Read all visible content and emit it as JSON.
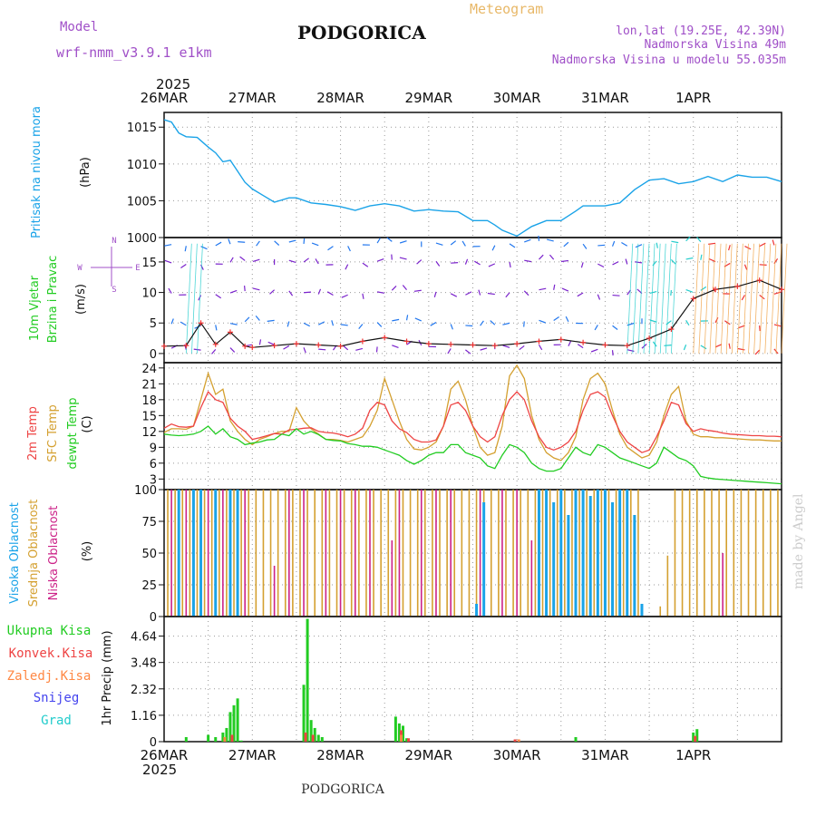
{
  "header": {
    "model_label": "Model",
    "model_name": "wrf-nmm_v3.9.1 e1km",
    "city": "PODGORICA",
    "title": "Meteogram",
    "lonlat": "lon,lat (19.25E, 42.39N)",
    "elevation": "Nadmorska Visina 49m",
    "model_elevation": "Nadmorska Visina u modelu 55.035m",
    "footer_city": "PODGORICA",
    "credit": "made by Angel"
  },
  "time_axis": {
    "year": "2025",
    "ticks": [
      "26MAR",
      "27MAR",
      "28MAR",
      "29MAR",
      "30MAR",
      "31MAR",
      "1APR"
    ]
  },
  "colors": {
    "pressure": "#1aa3e8",
    "wind_label": "#22cc22",
    "wind_purple": "#7a22cc",
    "wind_blue": "#2277ee",
    "wind_cyan": "#22cccc",
    "wind_red": "#ee3333",
    "temp2m": "#ee4444",
    "sfc": "#d4a030",
    "dewpt": "#22cc22",
    "cloud_high": "#1aa3e8",
    "cloud_mid": "#d4a030",
    "cloud_low": "#cc2288",
    "rain": "#22cc22",
    "conv": "#ee4444",
    "frz": "#ff8844",
    "snow": "#4444ee",
    "grad": "#22cccc"
  },
  "panels": {
    "pressure": {
      "labels": [
        "Pritisak na nivou mora",
        "(hPa)"
      ]
    },
    "wind": {
      "labels": [
        "10m Vjetar",
        "Brzina i Pravac",
        "(m/s)"
      ],
      "compass": [
        "N",
        "W",
        "E",
        "S"
      ]
    },
    "temp": {
      "labels": [
        "2m Temp",
        "SFC Temp",
        "dewpt Temp",
        "(C)"
      ]
    },
    "cloud": {
      "labels": [
        "Visoka Oblacnost",
        "Srednja Oblacnost",
        "Niska Oblacnost",
        "(%)"
      ]
    },
    "precip": {
      "labels": [
        "Ukupna Kisa",
        "Konvek.Kisa",
        "Zaledj.Kisa",
        "Snijeg",
        "Grad"
      ],
      "unit": "1hr Precip (mm)"
    }
  },
  "chart_data": [
    {
      "type": "line",
      "name": "pressure",
      "ylabel": "(hPa)",
      "ylim": [
        1000,
        1017
      ],
      "yticks": [
        1000,
        1005,
        1010,
        1015
      ],
      "x_hours": [
        0,
        2,
        4,
        6,
        9,
        12,
        14,
        16,
        18,
        20,
        22,
        24,
        27,
        30,
        34,
        36,
        40,
        44,
        48,
        52,
        56,
        60,
        64,
        68,
        72,
        76,
        80,
        84,
        88,
        90,
        92,
        96,
        100,
        104,
        108,
        112,
        114,
        116,
        118,
        120,
        124,
        128,
        132,
        136,
        140,
        144,
        148,
        152,
        156,
        160,
        164,
        168
      ],
      "values": [
        1016,
        1015.7,
        1014.2,
        1013.7,
        1013.6,
        1012.3,
        1011.5,
        1010.3,
        1010.5,
        1009,
        1007.5,
        1006.6,
        1005.7,
        1004.8,
        1005.4,
        1005.4,
        1004.7,
        1004.5,
        1004.2,
        1003.7,
        1004.3,
        1004.6,
        1004.3,
        1003.6,
        1003.8,
        1003.6,
        1003.5,
        1002.3,
        1002.3,
        1001.7,
        1001.0,
        1000.2,
        1001.5,
        1002.3,
        1002.3,
        1003.6,
        1004.3,
        1004.3,
        1004.3,
        1004.3,
        1004.7,
        1006.5,
        1007.8,
        1008.0,
        1007.3,
        1007.6,
        1008.3,
        1007.6,
        1008.5,
        1008.2,
        1008.2,
        1007.6
      ],
      "grid": true
    },
    {
      "type": "line",
      "name": "wind",
      "ylabel": "(m/s)",
      "ylim": [
        -1.5,
        19
      ],
      "yticks": [
        0,
        5,
        10,
        15
      ],
      "series": [
        {
          "x_hours": [
            0,
            6,
            10,
            14,
            18,
            22,
            24,
            30,
            36,
            42,
            48,
            54,
            60,
            66,
            72,
            78,
            84,
            90,
            96,
            102,
            108,
            114,
            120,
            126,
            132,
            138,
            144,
            150,
            156,
            162,
            168
          ],
          "values": [
            1.2,
            1.3,
            5.0,
            1.5,
            3.5,
            1.2,
            1.0,
            1.3,
            1.6,
            1.4,
            1.2,
            2.0,
            2.6,
            2.0,
            1.6,
            1.5,
            1.4,
            1.3,
            1.6,
            2.0,
            2.3,
            1.8,
            1.4,
            1.3,
            2.5,
            4.0,
            9.0,
            10.5,
            11.0,
            12.0,
            10.5
          ]
        }
      ],
      "grid": true
    },
    {
      "type": "line",
      "name": "temperature",
      "ylabel": "(C)",
      "ylim": [
        1,
        25
      ],
      "yticks": [
        3,
        6,
        9,
        12,
        15,
        18,
        21,
        24
      ],
      "x_hours": [
        0,
        2,
        4,
        6,
        8,
        10,
        12,
        14,
        16,
        18,
        20,
        22,
        24,
        26,
        28,
        30,
        32,
        34,
        36,
        38,
        40,
        42,
        44,
        46,
        48,
        50,
        52,
        54,
        56,
        58,
        60,
        62,
        64,
        66,
        68,
        70,
        72,
        74,
        76,
        78,
        80,
        82,
        84,
        86,
        88,
        90,
        92,
        94,
        96,
        98,
        100,
        102,
        104,
        106,
        108,
        110,
        112,
        114,
        116,
        118,
        120,
        122,
        124,
        126,
        128,
        130,
        132,
        134,
        136,
        138,
        140,
        142,
        144,
        146,
        148,
        150,
        152,
        154,
        156,
        158,
        160,
        162,
        164,
        166,
        168
      ],
      "series": [
        {
          "name": "2m Temp",
          "values": [
            12.6,
            13.4,
            12.9,
            12.8,
            13.0,
            16.5,
            19.5,
            18.0,
            17.5,
            14.5,
            13.0,
            12.0,
            10.5,
            10.8,
            11.2,
            11.6,
            11.5,
            12.3,
            12.4,
            12.6,
            12.7,
            12.0,
            11.8,
            11.7,
            11.4,
            11.0,
            11.5,
            12.6,
            16.0,
            17.5,
            17.0,
            14.0,
            12.5,
            11.8,
            10.5,
            10.0,
            10.0,
            10.4,
            13.0,
            17.0,
            17.5,
            16.0,
            13.0,
            11.0,
            10.0,
            11.0,
            15.0,
            18.0,
            19.5,
            18.0,
            14.0,
            11.0,
            9.0,
            8.5,
            9.0,
            10.0,
            12.0,
            16.0,
            19.0,
            19.5,
            18.5,
            15.0,
            12.0,
            10.0,
            9.0,
            8.0,
            8.5,
            11.0,
            14.0,
            17.5,
            17.0,
            13.5,
            12.0,
            12.5,
            12.2,
            12.0,
            11.7,
            11.5,
            11.4,
            11.3,
            11.2,
            11.2,
            11.1,
            11.1,
            11.0
          ]
        },
        {
          "name": "SFC Temp",
          "values": [
            11.8,
            12.5,
            12.5,
            12.4,
            13.0,
            18.0,
            23.0,
            19.0,
            20.0,
            14.0,
            12.0,
            10.5,
            9.5,
            10.5,
            11.0,
            11.6,
            12.0,
            12.0,
            16.5,
            14.0,
            12.5,
            11.5,
            10.5,
            10.5,
            10.3,
            10.0,
            10.5,
            11.0,
            13.0,
            16.0,
            22.0,
            18.0,
            14.0,
            10.5,
            8.7,
            8.5,
            9.0,
            10.0,
            13.0,
            20.0,
            21.5,
            18.0,
            13.0,
            9.0,
            7.5,
            8.0,
            13.0,
            22.5,
            24.5,
            22.0,
            15.0,
            10.5,
            8.0,
            7.0,
            6.5,
            8.0,
            11.0,
            18.0,
            22.0,
            23.0,
            21.0,
            16.0,
            11.5,
            9.0,
            8.0,
            7.0,
            7.5,
            10.0,
            15.0,
            19.0,
            20.5,
            14.0,
            11.5,
            11.0,
            11.0,
            10.8,
            10.8,
            10.7,
            10.6,
            10.5,
            10.4,
            10.4,
            10.3,
            10.2,
            10.2
          ]
        },
        {
          "name": "dewpt Temp",
          "values": [
            11.5,
            11.3,
            11.2,
            11.3,
            11.5,
            12.0,
            13.0,
            11.5,
            12.5,
            11.0,
            10.5,
            9.5,
            9.8,
            10.0,
            10.4,
            10.5,
            11.5,
            11.2,
            12.5,
            11.5,
            12.0,
            11.4,
            10.5,
            10.3,
            10.2,
            9.7,
            9.5,
            9.2,
            9.2,
            9.0,
            8.5,
            8.0,
            7.5,
            6.5,
            5.8,
            6.5,
            7.5,
            8.0,
            8.0,
            9.5,
            9.5,
            8.0,
            7.5,
            7.0,
            5.5,
            5.0,
            7.5,
            9.5,
            9.0,
            8.0,
            6.0,
            5.0,
            4.5,
            4.5,
            5.0,
            7.0,
            9.0,
            8.0,
            7.5,
            9.5,
            9.0,
            8.0,
            7.0,
            6.5,
            6.0,
            5.5,
            5.0,
            6.0,
            9.0,
            8.0,
            7.0,
            6.5,
            5.5,
            3.5,
            3.2,
            3.0,
            2.9,
            2.8,
            2.7,
            2.6,
            2.5,
            2.4,
            2.3,
            2.2,
            2.1
          ]
        }
      ],
      "grid": true
    },
    {
      "type": "bar",
      "name": "cloud",
      "ylabel": "(%)",
      "ylim": [
        0,
        100
      ],
      "yticks": [
        0,
        25,
        50,
        75,
        100
      ],
      "series": [
        {
          "name": "Visoka Oblacnost",
          "x_hours": [
            4,
            8,
            10,
            14,
            18,
            20,
            85,
            87,
            102,
            104,
            106,
            108,
            110,
            112,
            114,
            116,
            118,
            120,
            122,
            124,
            126,
            128,
            130
          ],
          "values": [
            100,
            100,
            100,
            100,
            100,
            100,
            10,
            90,
            100,
            100,
            90,
            100,
            80,
            100,
            100,
            95,
            100,
            100,
            90,
            100,
            100,
            80,
            10
          ]
        },
        {
          "name": "Srednja Oblacnost",
          "x_hours": [
            1,
            3,
            5,
            7,
            9,
            11,
            13,
            15,
            17,
            19,
            21,
            23,
            25,
            27,
            29,
            31,
            33,
            35,
            37,
            39,
            41,
            43,
            45,
            47,
            49,
            51,
            53,
            55,
            57,
            59,
            61,
            63,
            65,
            67,
            69,
            71,
            73,
            75,
            77,
            79,
            81,
            83,
            85,
            87,
            89,
            91,
            93,
            95,
            97,
            99,
            101,
            103,
            105,
            107,
            109,
            111,
            113,
            115,
            117,
            119,
            121,
            123,
            125,
            127,
            129,
            131,
            135,
            137,
            139,
            141,
            143,
            145,
            147,
            149,
            151,
            153,
            155,
            157,
            159,
            161,
            163,
            165,
            167
          ],
          "values": [
            100,
            100,
            100,
            100,
            100,
            100,
            100,
            100,
            100,
            100,
            100,
            100,
            100,
            100,
            100,
            100,
            100,
            100,
            100,
            100,
            100,
            100,
            100,
            100,
            100,
            100,
            100,
            100,
            100,
            100,
            100,
            100,
            100,
            100,
            100,
            100,
            100,
            100,
            100,
            100,
            100,
            100,
            100,
            100,
            100,
            100,
            100,
            100,
            100,
            100,
            100,
            100,
            100,
            100,
            100,
            100,
            100,
            100,
            100,
            100,
            100,
            100,
            100,
            100,
            100,
            0,
            8,
            48,
            100,
            100,
            100,
            100,
            100,
            100,
            100,
            100,
            100,
            100,
            100,
            100,
            100,
            100,
            100
          ]
        },
        {
          "name": "Niska Oblacnost",
          "x_hours": [
            2,
            6,
            12,
            16,
            22,
            30,
            34,
            38,
            44,
            48,
            52,
            56,
            62,
            64,
            70,
            74,
            78,
            86,
            92,
            96,
            100,
            106,
            112,
            118,
            122,
            126,
            152
          ],
          "values": [
            100,
            100,
            100,
            100,
            100,
            40,
            100,
            100,
            100,
            100,
            100,
            100,
            60,
            100,
            100,
            100,
            100,
            100,
            100,
            100,
            60,
            40,
            55,
            25,
            70,
            45,
            50
          ]
        }
      ],
      "grid": true
    },
    {
      "type": "bar",
      "name": "precipitation",
      "ylabel": "1hr Precip (mm)",
      "ylim": [
        0,
        5.5
      ],
      "yticks": [
        0,
        1.16,
        2.32,
        3.48,
        4.64
      ],
      "series": [
        {
          "name": "Ukupna Kisa",
          "x_hours": [
            6,
            12,
            14,
            16,
            17,
            18,
            19,
            20,
            21,
            38,
            39,
            40,
            41,
            42,
            43,
            63,
            64,
            65,
            66,
            112,
            144,
            145
          ],
          "values": [
            0.2,
            0.3,
            0.2,
            0.4,
            0.6,
            1.3,
            1.6,
            1.9,
            0.05,
            2.5,
            5.4,
            0.95,
            0.6,
            0.3,
            0.2,
            1.1,
            0.8,
            0.7,
            0.15,
            0.2,
            0.4,
            0.55
          ]
        },
        {
          "name": "Konvek.Kisa",
          "x_hours": [
            18,
            38,
            40,
            64,
            66,
            95,
            144
          ],
          "values": [
            0.3,
            0.4,
            0.3,
            0.5,
            0.15,
            0.1,
            0.25
          ]
        },
        {
          "name": "Zaledj.Kisa",
          "x_hours": [
            17,
            65,
            97
          ],
          "values": [
            0.2,
            0.3,
            0.1
          ]
        }
      ],
      "grid": true
    }
  ]
}
